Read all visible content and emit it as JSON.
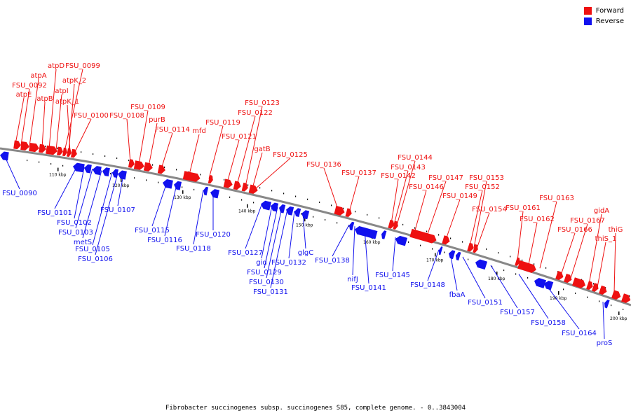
{
  "caption": "Fibrobacter succinogenes subsp. succinogenes S85, complete genome. - 0..3843004",
  "colors": {
    "forward": "#ee1111",
    "reverse": "#1111ee",
    "backbone": "#888888"
  },
  "legend": [
    {
      "label": "Forward",
      "strand": "forward"
    },
    {
      "label": "Reverse",
      "strand": "reverse"
    }
  ],
  "ticks": [
    "110 kbp",
    "120 kbp",
    "130 kbp",
    "140 kbp",
    "150 kbp",
    "160 kbp",
    "170 kbp",
    "180 kbp",
    "190 kbp",
    "200 kbp"
  ],
  "forward_labels": [
    "atpE",
    "FSU_0092",
    "atpA",
    "atpB",
    "atpD",
    "atpI",
    "FSU_0099",
    "atpK_2",
    "atpK_1",
    "FSU_0100",
    "FSU_0108",
    "FSU_0109",
    "purB",
    "FSU_0114",
    "mfd",
    "FSU_0119",
    "FSU_0121",
    "FSU_0122",
    "FSU_0123",
    "gatB",
    "FSU_0125",
    "FSU_0136",
    "FSU_0137",
    "FSU_0142",
    "FSU_0143",
    "FSU_0144",
    "FSU_0146",
    "FSU_0147",
    "FSU_0149",
    "FSU_0152",
    "FSU_0153",
    "FSU_0154",
    "FSU_0161",
    "FSU_0162",
    "FSU_0163",
    "FSU_0166",
    "FSU_0167",
    "gidA",
    "thiS_1",
    "thiG"
  ],
  "reverse_labels": [
    "FSU_0090",
    "FSU_0101",
    "FSU_0102",
    "FSU_0103",
    "metS",
    "FSU_0105",
    "FSU_0106",
    "FSU_0107",
    "FSU_0115",
    "FSU_0116",
    "FSU_0118",
    "FSU_0120",
    "FSU_0127",
    "gid",
    "FSU_0129",
    "FSU_0130",
    "FSU_0131",
    "FSU_0132",
    "glgC",
    "FSU_0138",
    "nifJ",
    "FSU_0141",
    "FSU_0145",
    "FSU_0148",
    "fbaA",
    "FSU_0151",
    "FSU_0157",
    "FSU_0158",
    "FSU_0164",
    "proS"
  ]
}
